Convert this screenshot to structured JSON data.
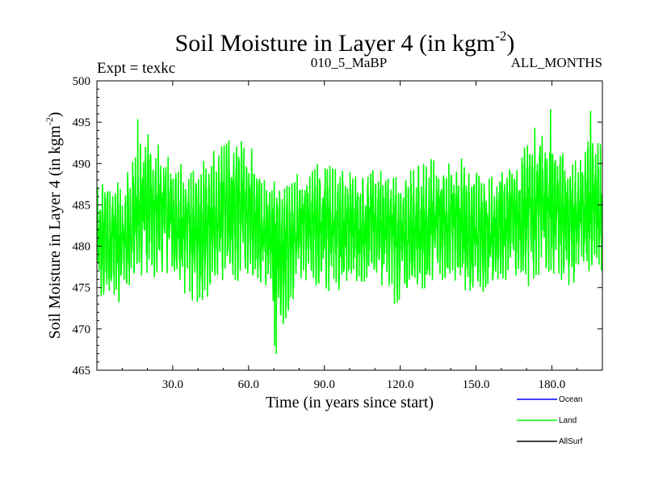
{
  "chart_data": {
    "type": "line",
    "title": "Soil Moisture in Layer 4 (in kgm",
    "title_sup": "-2",
    "title_close": ")",
    "subtitle_left": "Expt = texkc",
    "subtitle_center": "010_5_MaBP",
    "subtitle_right": "ALL_MONTHS",
    "xlabel": "Time (in years since start)",
    "ylabel": "Soil Moisture in Layer 4 (in kgm",
    "ylabel_sup": "-2",
    "ylabel_close": ")",
    "xlim": [
      0,
      200
    ],
    "ylim": [
      465,
      500
    ],
    "xticks": [
      30,
      60,
      90,
      120,
      150,
      180
    ],
    "xtick_labels": [
      "30.0",
      "60.0",
      "90.0",
      "120.0",
      "150.0",
      "180.0"
    ],
    "yticks": [
      465,
      470,
      475,
      480,
      485,
      490,
      495,
      500
    ],
    "ytick_labels": [
      "465",
      "470",
      "475",
      "480",
      "485",
      "490",
      "495",
      "500"
    ],
    "grid": false,
    "legend_position": "bottom-right",
    "series": [
      {
        "name": "Ocean",
        "color": "#0000ff",
        "values": []
      },
      {
        "name": "Land",
        "color": "#00ff00",
        "samples_per_year": 12,
        "envelope_years": [
          0,
          5,
          10,
          15,
          20,
          25,
          30,
          35,
          40,
          45,
          50,
          55,
          60,
          65,
          70,
          75,
          80,
          85,
          90,
          95,
          100,
          105,
          110,
          115,
          120,
          125,
          130,
          135,
          140,
          145,
          150,
          155,
          160,
          165,
          170,
          175,
          180,
          185,
          190,
          195,
          200
        ],
        "envelope_min": [
          473,
          472,
          472,
          475,
          476,
          476,
          476,
          474,
          473,
          474,
          475,
          475,
          476,
          475,
          473,
          469,
          476,
          475,
          474,
          474,
          475,
          475,
          476,
          474,
          472,
          474,
          474,
          476,
          475,
          475,
          472,
          473,
          475,
          476,
          475,
          475,
          476,
          475,
          475,
          476,
          476
        ],
        "envelope_max": [
          487,
          490,
          488,
          492,
          494,
          492,
          491,
          490,
          490,
          491,
          493,
          494,
          493,
          490,
          489,
          488,
          489,
          490,
          491,
          490,
          490,
          489,
          490,
          490,
          489,
          490,
          491,
          490,
          491,
          491,
          490,
          489,
          490,
          491,
          493,
          495,
          493,
          492,
          491,
          494,
          492
        ],
        "extremes": [
          {
            "x": 70.3,
            "y": 468
          },
          {
            "x": 71.0,
            "y": 467
          },
          {
            "x": 179.5,
            "y": 496.5
          },
          {
            "x": 195.3,
            "y": 496.3
          },
          {
            "x": 16.2,
            "y": 495.3
          }
        ]
      },
      {
        "name": "AllSurf",
        "color": "#000000",
        "values": []
      }
    ]
  }
}
